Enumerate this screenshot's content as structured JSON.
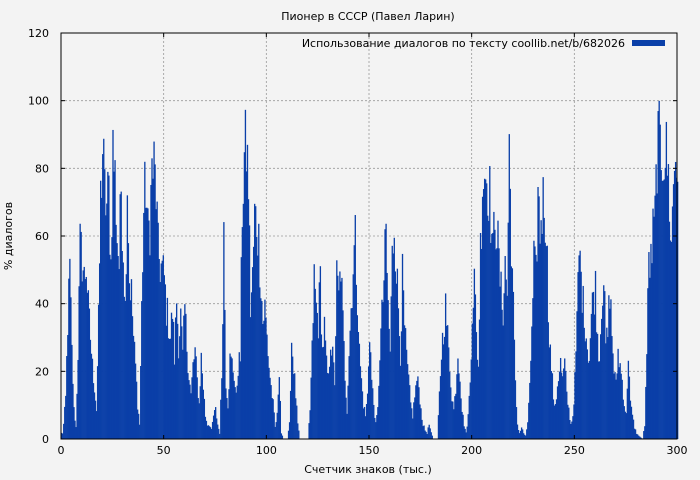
{
  "chart_data": {
    "type": "bar",
    "title": "Пионер в СССР (Павел Ларин)",
    "xlabel": "Счетчик знаков (тыс.)",
    "ylabel": "% диалогов",
    "xlim": [
      0,
      300
    ],
    "ylim": [
      0,
      120
    ],
    "xticks": [
      0,
      50,
      100,
      150,
      200,
      250,
      300
    ],
    "yticks": [
      0,
      20,
      40,
      60,
      80,
      100,
      120
    ],
    "grid": true,
    "legend_position": "top-right",
    "bar_width": 0.5,
    "series": [
      {
        "name": "Использование диалогов по тексту coollib.net/b/682026",
        "color": "#0a3fa8",
        "anchors": [
          [
            0.5,
            2
          ],
          [
            1,
            5
          ],
          [
            2,
            14
          ],
          [
            3,
            40
          ],
          [
            4,
            58
          ],
          [
            5,
            30
          ],
          [
            6,
            10
          ],
          [
            7,
            4
          ],
          [
            8,
            30
          ],
          [
            9,
            66
          ],
          [
            10,
            62
          ],
          [
            11,
            55
          ],
          [
            12,
            60
          ],
          [
            13,
            45
          ],
          [
            14,
            35
          ],
          [
            15,
            25
          ],
          [
            16,
            18
          ],
          [
            17,
            10
          ],
          [
            18,
            40
          ],
          [
            19,
            82
          ],
          [
            20,
            100
          ],
          [
            21,
            84
          ],
          [
            22,
            80
          ],
          [
            23,
            85
          ],
          [
            24,
            60
          ],
          [
            25,
            100
          ],
          [
            26,
            90
          ],
          [
            27,
            70
          ],
          [
            28,
            60
          ],
          [
            29,
            87
          ],
          [
            30,
            66
          ],
          [
            31,
            45
          ],
          [
            32,
            90
          ],
          [
            33,
            55
          ],
          [
            34,
            50
          ],
          [
            35,
            35
          ],
          [
            36,
            25
          ],
          [
            37,
            12
          ],
          [
            38,
            5
          ],
          [
            39,
            45
          ],
          [
            40,
            78
          ],
          [
            41,
            88
          ],
          [
            42,
            70
          ],
          [
            43,
            75
          ],
          [
            44,
            92
          ],
          [
            45,
            93
          ],
          [
            46,
            85
          ],
          [
            47,
            64
          ],
          [
            48,
            60
          ],
          [
            49,
            58
          ],
          [
            50,
            55
          ],
          [
            51,
            45
          ],
          [
            52,
            40
          ],
          [
            53,
            35
          ],
          [
            54,
            44
          ],
          [
            55,
            28
          ],
          [
            56,
            48
          ],
          [
            57,
            33
          ],
          [
            58,
            42
          ],
          [
            59,
            28
          ],
          [
            60,
            45
          ],
          [
            61,
            32
          ],
          [
            62,
            22
          ],
          [
            63,
            15
          ],
          [
            64,
            25
          ],
          [
            65,
            30
          ],
          [
            66,
            20
          ],
          [
            67,
            12
          ],
          [
            68,
            28
          ],
          [
            69,
            18
          ],
          [
            70,
            8
          ],
          [
            71,
            5
          ],
          [
            72,
            5
          ],
          [
            73,
            3
          ],
          [
            74,
            8
          ],
          [
            75,
            10
          ],
          [
            76,
            5
          ],
          [
            77,
            2
          ],
          [
            78,
            22
          ],
          [
            79,
            72
          ],
          [
            80,
            20
          ],
          [
            81,
            12
          ],
          [
            82,
            27
          ],
          [
            83,
            26
          ],
          [
            84,
            22
          ],
          [
            85,
            14
          ],
          [
            86,
            25
          ],
          [
            87,
            28
          ],
          [
            88,
            80
          ],
          [
            89,
            96
          ],
          [
            90,
            100
          ],
          [
            91,
            88
          ],
          [
            92,
            45
          ],
          [
            93,
            55
          ],
          [
            94,
            76
          ],
          [
            95,
            75
          ],
          [
            96,
            68
          ],
          [
            97,
            55
          ],
          [
            98,
            40
          ],
          [
            99,
            45
          ],
          [
            100,
            35
          ],
          [
            101,
            25
          ],
          [
            102,
            18
          ],
          [
            103,
            12
          ],
          [
            104,
            4
          ],
          [
            105,
            8
          ],
          [
            106,
            25
          ],
          [
            107,
            2
          ],
          [
            108,
            0
          ],
          [
            110,
            0
          ],
          [
            111,
            5
          ],
          [
            112,
            34
          ],
          [
            113,
            25
          ],
          [
            114,
            15
          ],
          [
            115,
            5
          ],
          [
            116,
            0
          ],
          [
            120,
            0
          ],
          [
            121,
            10
          ],
          [
            122,
            30
          ],
          [
            123,
            55
          ],
          [
            124,
            45
          ],
          [
            125,
            40
          ],
          [
            126,
            55
          ],
          [
            127,
            30
          ],
          [
            128,
            38
          ],
          [
            129,
            25
          ],
          [
            130,
            20
          ],
          [
            131,
            35
          ],
          [
            132,
            28
          ],
          [
            133,
            20
          ],
          [
            134,
            55
          ],
          [
            135,
            48
          ],
          [
            136,
            60
          ],
          [
            137,
            40
          ],
          [
            138,
            22
          ],
          [
            139,
            10
          ],
          [
            140,
            30
          ],
          [
            141,
            45
          ],
          [
            142,
            60
          ],
          [
            143,
            68
          ],
          [
            144,
            50
          ],
          [
            145,
            30
          ],
          [
            146,
            20
          ],
          [
            147,
            12
          ],
          [
            148,
            8
          ],
          [
            149,
            15
          ],
          [
            150,
            38
          ],
          [
            151,
            20
          ],
          [
            152,
            12
          ],
          [
            153,
            5
          ],
          [
            154,
            10
          ],
          [
            155,
            30
          ],
          [
            156,
            42
          ],
          [
            157,
            55
          ],
          [
            158,
            70
          ],
          [
            159,
            45
          ],
          [
            160,
            30
          ],
          [
            161,
            62
          ],
          [
            162,
            75
          ],
          [
            163,
            60
          ],
          [
            164,
            45
          ],
          [
            165,
            30
          ],
          [
            166,
            55
          ],
          [
            167,
            38
          ],
          [
            168,
            28
          ],
          [
            169,
            20
          ],
          [
            170,
            12
          ],
          [
            171,
            8
          ],
          [
            172,
            15
          ],
          [
            173,
            20
          ],
          [
            174,
            18
          ],
          [
            175,
            10
          ],
          [
            176,
            5
          ],
          [
            177,
            3
          ],
          [
            178,
            2
          ],
          [
            179,
            5
          ],
          [
            180,
            2
          ],
          [
            181,
            0
          ],
          [
            183,
            0
          ],
          [
            184,
            15
          ],
          [
            185,
            30
          ],
          [
            186,
            38
          ],
          [
            187,
            45
          ],
          [
            188,
            35
          ],
          [
            189,
            25
          ],
          [
            190,
            15
          ],
          [
            191,
            10
          ],
          [
            192,
            18
          ],
          [
            193,
            30
          ],
          [
            194,
            22
          ],
          [
            195,
            10
          ],
          [
            196,
            5
          ],
          [
            197,
            2
          ],
          [
            198,
            8
          ],
          [
            199,
            20
          ],
          [
            200,
            45
          ],
          [
            201,
            55
          ],
          [
            202,
            35
          ],
          [
            203,
            25
          ],
          [
            204,
            65
          ],
          [
            205,
            90
          ],
          [
            206,
            93
          ],
          [
            207,
            90
          ],
          [
            208,
            88
          ],
          [
            209,
            78
          ],
          [
            210,
            62
          ],
          [
            211,
            80
          ],
          [
            212,
            72
          ],
          [
            213,
            60
          ],
          [
            214,
            50
          ],
          [
            215,
            45
          ],
          [
            216,
            60
          ],
          [
            217,
            50
          ],
          [
            218,
            100
          ],
          [
            219,
            70
          ],
          [
            220,
            45
          ],
          [
            221,
            18
          ],
          [
            222,
            5
          ],
          [
            223,
            2
          ],
          [
            224,
            4
          ],
          [
            225,
            2
          ],
          [
            226,
            1
          ],
          [
            227,
            5
          ],
          [
            228,
            20
          ],
          [
            229,
            35
          ],
          [
            230,
            60
          ],
          [
            231,
            55
          ],
          [
            232,
            84
          ],
          [
            233,
            72
          ],
          [
            234,
            80
          ],
          [
            235,
            82
          ],
          [
            236,
            75
          ],
          [
            237,
            45
          ],
          [
            238,
            30
          ],
          [
            239,
            20
          ],
          [
            240,
            10
          ],
          [
            241,
            15
          ],
          [
            242,
            22
          ],
          [
            243,
            26
          ],
          [
            244,
            20
          ],
          [
            245,
            26
          ],
          [
            246,
            15
          ],
          [
            247,
            10
          ],
          [
            248,
            5
          ],
          [
            249,
            8
          ],
          [
            250,
            20
          ],
          [
            251,
            40
          ],
          [
            252,
            64
          ],
          [
            253,
            56
          ],
          [
            254,
            46
          ],
          [
            255,
            40
          ],
          [
            256,
            32
          ],
          [
            257,
            28
          ],
          [
            258,
            42
          ],
          [
            259,
            50
          ],
          [
            260,
            52
          ],
          [
            261,
            35
          ],
          [
            262,
            28
          ],
          [
            263,
            48
          ],
          [
            264,
            56
          ],
          [
            265,
            32
          ],
          [
            266,
            36
          ],
          [
            267,
            52
          ],
          [
            268,
            36
          ],
          [
            269,
            24
          ],
          [
            270,
            18
          ],
          [
            271,
            30
          ],
          [
            272,
            25
          ],
          [
            273,
            20
          ],
          [
            274,
            12
          ],
          [
            275,
            8
          ],
          [
            276,
            30
          ],
          [
            277,
            12
          ],
          [
            278,
            8
          ],
          [
            279,
            4
          ],
          [
            280,
            2
          ],
          [
            281,
            1
          ],
          [
            283,
            0
          ],
          [
            284,
            5
          ],
          [
            285,
            30
          ],
          [
            286,
            62
          ],
          [
            287,
            60
          ],
          [
            288,
            70
          ],
          [
            289,
            75
          ],
          [
            290,
            100
          ],
          [
            291,
            100
          ],
          [
            292,
            99
          ],
          [
            293,
            100
          ],
          [
            294,
            98
          ],
          [
            295,
            95
          ],
          [
            296,
            82
          ],
          [
            297,
            65
          ],
          [
            298,
            90
          ],
          [
            299,
            98
          ],
          [
            300,
            96
          ]
        ]
      }
    ]
  }
}
